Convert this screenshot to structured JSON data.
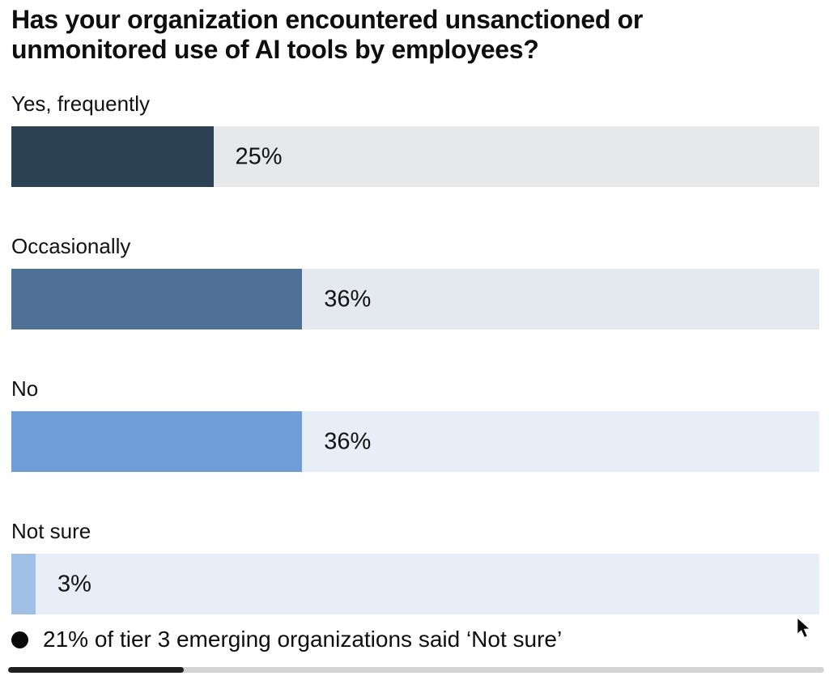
{
  "title": "Has your organization encountered unsanctioned or unmonitored use of AI tools by employees?",
  "chart_data": {
    "type": "bar",
    "orientation": "horizontal",
    "title": "Has your organization encountered unsanctioned or unmonitored use of AI tools by employees?",
    "categories": [
      "Yes, frequently",
      "Occasionally",
      "No",
      "Not sure"
    ],
    "values": [
      25,
      36,
      36,
      3
    ],
    "value_labels": [
      "25%",
      "36%",
      "36%",
      "3%"
    ],
    "xlim": [
      0,
      100
    ],
    "grid": false,
    "legend": false,
    "bar_colors": [
      "#2d4154",
      "#4e7195",
      "#6f9ed7",
      "#a0bfe4"
    ],
    "track_colors": [
      "#e7e8ea",
      "#e4e8ef",
      "#e8eef8",
      "#e8eef8"
    ],
    "annotations": [
      "21% of tier 3 emerging organizations said ‘Not sure’"
    ]
  },
  "annotation": {
    "bullet_icon": "filled-circle",
    "text": "21% of tier 3 emerging organizations said ‘Not sure’"
  },
  "scrollbar": {
    "progress_pct": 21.5,
    "thumb_color": "#1f1f1f",
    "track_color": "#d3d3d3"
  }
}
